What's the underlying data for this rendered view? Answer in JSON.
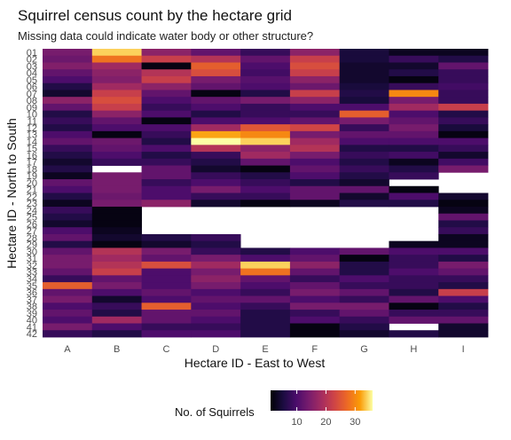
{
  "chart_data": {
    "type": "heatmap",
    "title": "Squirrel census count by the hectare grid",
    "subtitle": "Missing data could indicate water body or other structure?",
    "xlabel": "Hectare ID - East to West",
    "ylabel": "Hectare ID - North to South",
    "x_categories": [
      "A",
      "B",
      "C",
      "D",
      "E",
      "F",
      "G",
      "H",
      "I"
    ],
    "y_categories": [
      "01",
      "02",
      "03",
      "04",
      "05",
      "06",
      "07",
      "08",
      "09",
      "10",
      "11",
      "12",
      "13",
      "14",
      "15",
      "16",
      "17",
      "18",
      "19",
      "20",
      "21",
      "22",
      "23",
      "24",
      "25",
      "26",
      "27",
      "28",
      "29",
      "30",
      "31",
      "32",
      "33",
      "34",
      "35",
      "36",
      "37",
      "38",
      "39",
      "40",
      "41",
      "42"
    ],
    "legend": {
      "title": "No. of Squirrels",
      "ticks": [
        10,
        20,
        30
      ],
      "range": [
        1,
        36
      ],
      "position": "bottom"
    },
    "colorscale": "inferno",
    "values": [
      [
        14,
        34,
        16,
        12,
        8,
        16,
        5,
        3,
        3
      ],
      [
        13,
        28,
        22,
        20,
        12,
        22,
        5,
        8,
        6
      ],
      [
        15,
        18,
        2,
        26,
        10,
        24,
        4,
        4,
        12
      ],
      [
        12,
        16,
        20,
        24,
        9,
        22,
        4,
        6,
        8
      ],
      [
        10,
        15,
        22,
        14,
        11,
        16,
        4,
        2,
        8
      ],
      [
        6,
        18,
        16,
        12,
        10,
        13,
        5,
        8,
        9
      ],
      [
        4,
        22,
        12,
        2,
        6,
        22,
        6,
        30,
        8
      ],
      [
        16,
        24,
        10,
        12,
        14,
        16,
        5,
        14,
        8
      ],
      [
        12,
        22,
        8,
        10,
        8,
        10,
        10,
        18,
        22
      ],
      [
        6,
        16,
        10,
        6,
        8,
        8,
        26,
        10,
        6
      ],
      [
        8,
        12,
        2,
        10,
        10,
        12,
        14,
        12,
        8
      ],
      [
        6,
        10,
        10,
        18,
        25,
        23,
        8,
        14,
        5
      ],
      [
        10,
        2,
        8,
        32,
        30,
        14,
        12,
        12,
        2
      ],
      [
        12,
        13,
        6,
        36,
        34,
        18,
        10,
        10,
        10
      ],
      [
        8,
        12,
        10,
        20,
        16,
        20,
        6,
        6,
        8
      ],
      [
        6,
        10,
        6,
        8,
        18,
        14,
        8,
        9,
        4
      ],
      [
        4,
        8,
        8,
        6,
        12,
        10,
        6,
        3,
        9
      ],
      [
        6,
        null,
        12,
        4,
        2,
        12,
        8,
        6,
        14
      ],
      [
        3,
        14,
        12,
        8,
        6,
        10,
        6,
        8,
        null
      ],
      [
        12,
        14,
        8,
        10,
        8,
        6,
        4,
        null,
        null
      ],
      [
        10,
        14,
        10,
        14,
        10,
        12,
        12,
        2,
        null
      ],
      [
        6,
        13,
        10,
        8,
        8,
        12,
        4,
        10,
        4
      ],
      [
        3,
        14,
        16,
        4,
        2,
        3,
        6,
        6,
        2
      ],
      [
        8,
        2,
        null,
        null,
        null,
        null,
        null,
        null,
        3
      ],
      [
        6,
        2,
        null,
        null,
        null,
        null,
        null,
        null,
        12
      ],
      [
        4,
        2,
        null,
        null,
        null,
        null,
        null,
        null,
        6
      ],
      [
        10,
        3,
        null,
        null,
        null,
        null,
        null,
        null,
        8
      ],
      [
        12,
        4,
        6,
        8,
        null,
        null,
        null,
        null,
        3
      ],
      [
        6,
        2,
        4,
        6,
        null,
        null,
        null,
        3,
        3
      ],
      [
        12,
        20,
        14,
        8,
        6,
        10,
        12,
        10,
        10
      ],
      [
        14,
        18,
        12,
        14,
        10,
        12,
        2,
        8,
        6
      ],
      [
        14,
        20,
        24,
        18,
        34,
        16,
        6,
        8,
        14
      ],
      [
        12,
        22,
        10,
        14,
        28,
        12,
        6,
        10,
        12
      ],
      [
        8,
        12,
        10,
        16,
        12,
        8,
        10,
        8,
        8
      ],
      [
        26,
        14,
        10,
        14,
        10,
        12,
        8,
        8,
        6
      ],
      [
        12,
        10,
        12,
        10,
        8,
        14,
        12,
        6,
        22
      ],
      [
        14,
        4,
        10,
        12,
        12,
        10,
        8,
        12,
        10
      ],
      [
        10,
        8,
        26,
        10,
        8,
        14,
        14,
        2,
        6
      ],
      [
        12,
        6,
        12,
        12,
        6,
        8,
        12,
        8,
        8
      ],
      [
        10,
        18,
        12,
        10,
        6,
        10,
        8,
        12,
        12
      ],
      [
        14,
        10,
        8,
        8,
        6,
        2,
        6,
        null,
        4
      ],
      [
        8,
        6,
        10,
        10,
        6,
        2,
        4,
        6,
        4
      ]
    ]
  }
}
